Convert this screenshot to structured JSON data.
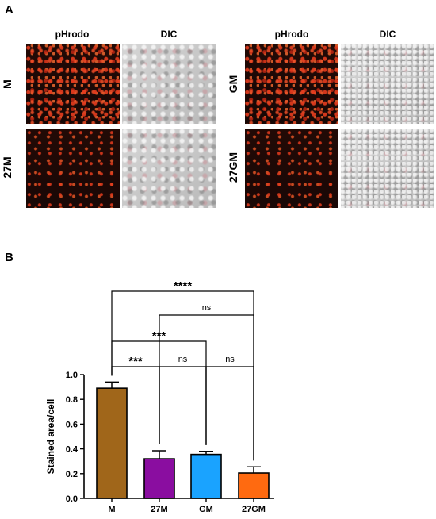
{
  "panel_a": {
    "letter": "A",
    "left_columns": [
      "pHrodo",
      "DIC"
    ],
    "right_columns": [
      "pHrodo",
      "DIC"
    ],
    "left_rows": [
      "M",
      "27M"
    ],
    "right_rows": [
      "GM",
      "27GM"
    ]
  },
  "panel_b": {
    "letter": "B"
  },
  "colors": {
    "M": "#A0661A",
    "27M": "#8A0DA0",
    "GM": "#1AA3FF",
    "27GM": "#FF6A10"
  },
  "chart_data": {
    "type": "bar",
    "categories": [
      "M",
      "27M",
      "GM",
      "27GM"
    ],
    "values": [
      0.89,
      0.32,
      0.355,
      0.205
    ],
    "errors": [
      0.05,
      0.065,
      0.025,
      0.05
    ],
    "ylabel": "Stained area/cell",
    "ylim": [
      0,
      1.0
    ],
    "yticks": [
      "0.0",
      "0.2",
      "0.4",
      "0.6",
      "0.8",
      "1.0"
    ],
    "significance": [
      {
        "from": "M",
        "to": "27GM",
        "label": "****"
      },
      {
        "from": "27M",
        "to": "27GM",
        "label": "ns"
      },
      {
        "from": "M",
        "to": "GM",
        "label": "***"
      },
      {
        "from": "M",
        "to": "27M",
        "label": "***"
      },
      {
        "from": "27M",
        "to": "GM",
        "label": "ns"
      },
      {
        "from": "GM",
        "to": "27GM",
        "label": "ns"
      }
    ]
  }
}
